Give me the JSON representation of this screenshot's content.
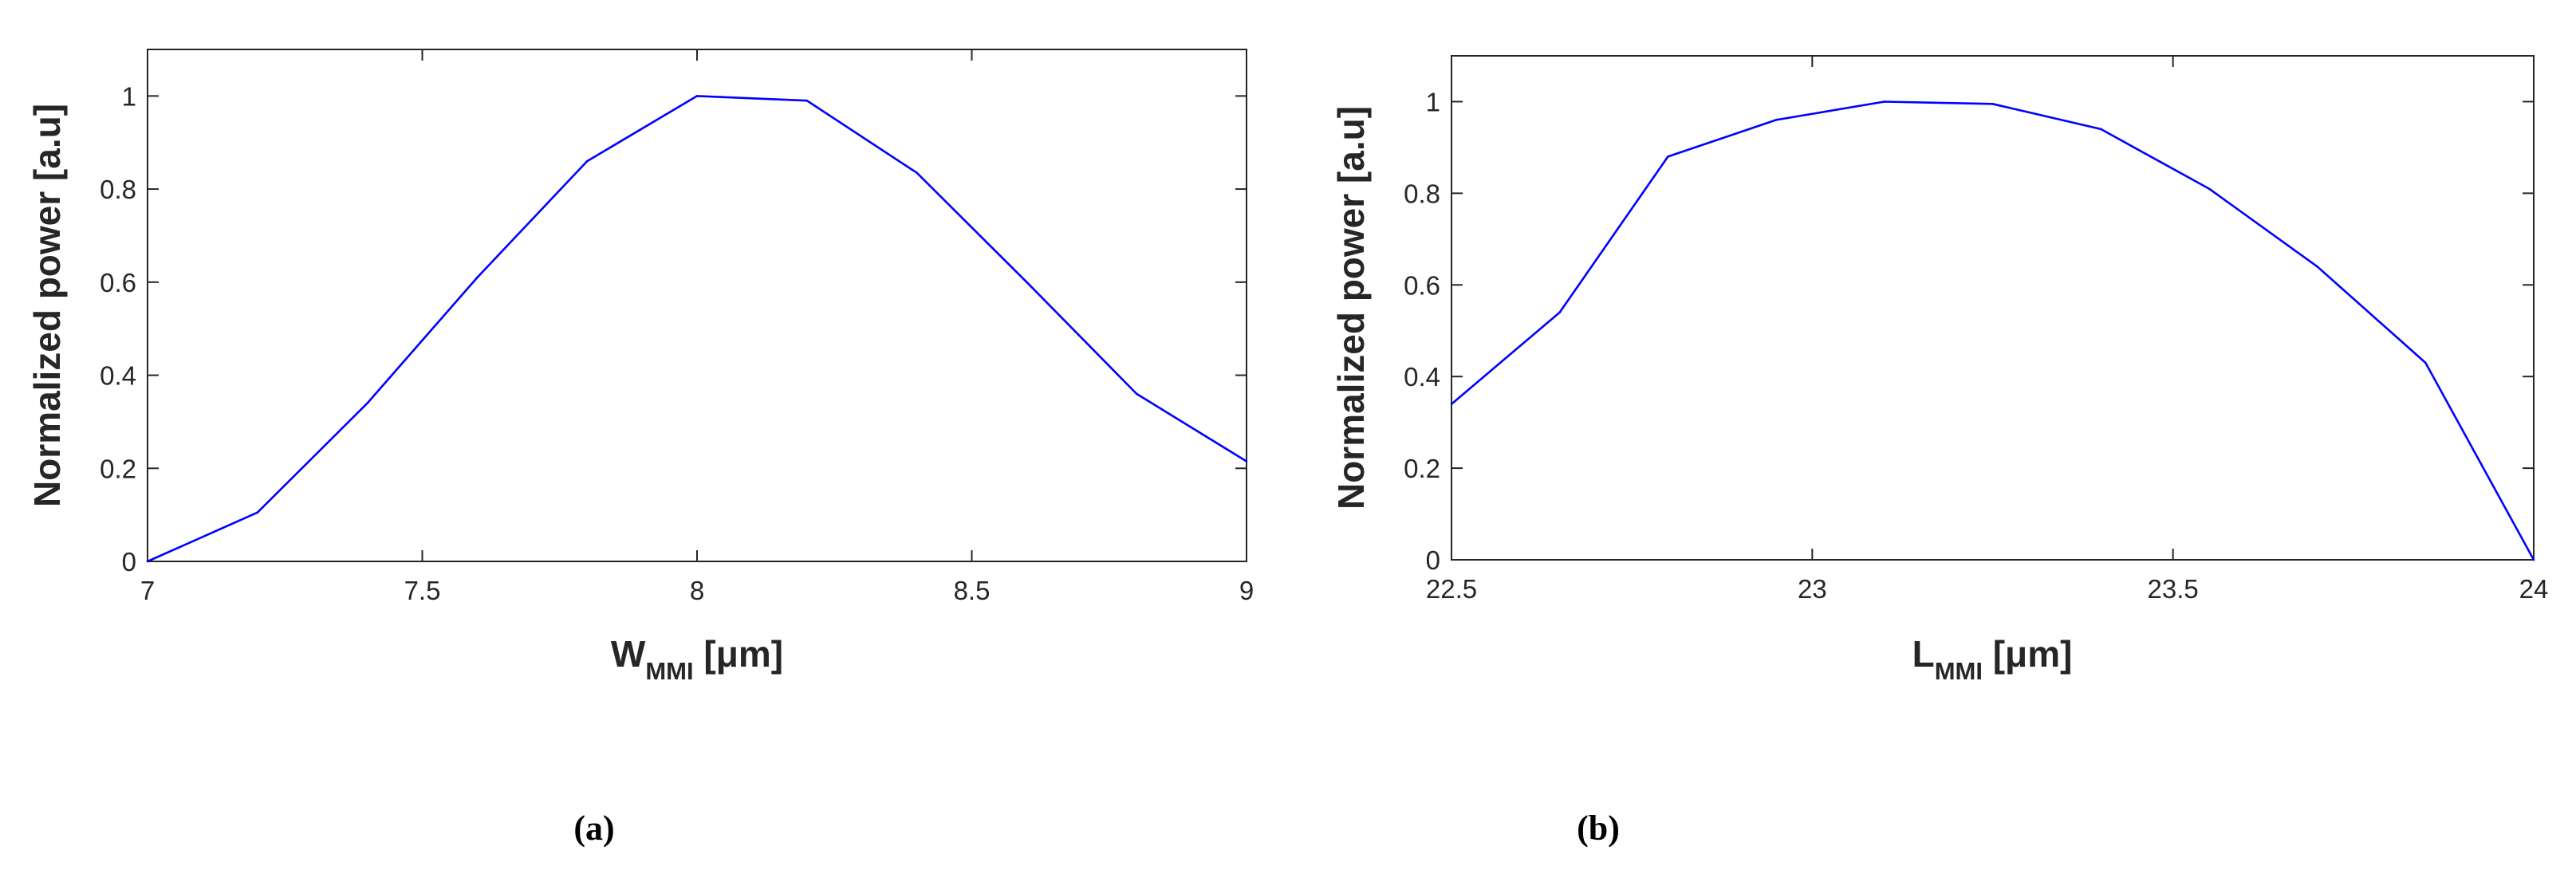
{
  "chart_data": [
    {
      "id": "a",
      "type": "line",
      "caption": "(a)",
      "ylabel": "Normalized power [a.u]",
      "xlabel_main": "W",
      "xlabel_sub": "MMI",
      "xlabel_unit": " [μm]",
      "xlim": [
        7,
        9
      ],
      "ylim": [
        0,
        1.1
      ],
      "xticks": [
        7,
        7.5,
        8,
        8.5,
        9
      ],
      "xtick_labels": [
        "7",
        "7.5",
        "8",
        "8.5",
        "9"
      ],
      "yticks": [
        0,
        0.2,
        0.4,
        0.6,
        0.8,
        1
      ],
      "ytick_labels": [
        "0",
        "0.2",
        "0.4",
        "0.6",
        "0.8",
        "1"
      ],
      "grid": false,
      "line_color": "#0000ff",
      "series": [
        {
          "x": [
            7.0,
            7.2,
            7.4,
            7.6,
            7.8,
            8.0,
            8.2,
            8.4,
            8.6,
            8.8,
            9.0
          ],
          "y": [
            0.0,
            0.105,
            0.34,
            0.61,
            0.86,
            1.0,
            0.99,
            0.835,
            0.6,
            0.36,
            0.215
          ]
        }
      ]
    },
    {
      "id": "b",
      "type": "line",
      "caption": "(b)",
      "ylabel": "Normalized power [a.u]",
      "xlabel_main": "L",
      "xlabel_sub": "MMI",
      "xlabel_unit": " [μm]",
      "xlim": [
        22.5,
        24
      ],
      "ylim": [
        0,
        1.1
      ],
      "xticks": [
        22.5,
        23,
        23.5,
        24
      ],
      "xtick_labels": [
        "22.5",
        "23",
        "23.5",
        "24"
      ],
      "yticks": [
        0,
        0.2,
        0.4,
        0.6,
        0.8,
        1
      ],
      "ytick_labels": [
        "0",
        "0.2",
        "0.4",
        "0.6",
        "0.8",
        "1"
      ],
      "grid": false,
      "line_color": "#0000ff",
      "series": [
        {
          "x": [
            22.5,
            22.65,
            22.8,
            22.95,
            23.1,
            23.25,
            23.4,
            23.55,
            23.7,
            23.85,
            24.0
          ],
          "y": [
            0.34,
            0.54,
            0.88,
            0.96,
            1.0,
            0.995,
            0.94,
            0.81,
            0.64,
            0.43,
            0.0
          ]
        }
      ]
    }
  ]
}
